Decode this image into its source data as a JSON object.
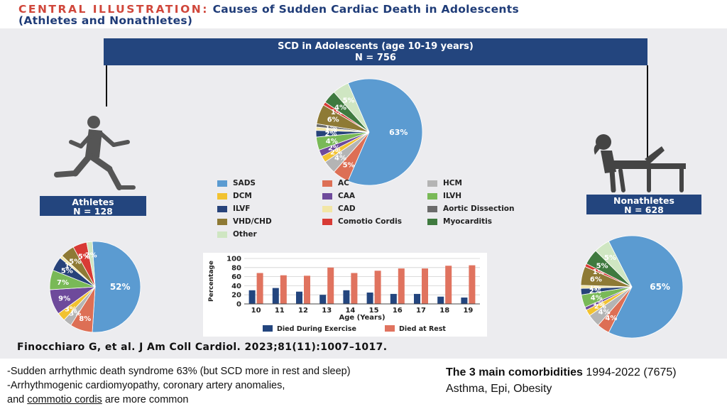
{
  "title": {
    "lead": "CENTRAL ILLUSTRATION:",
    "main": "Causes of Sudden Cardiac Death in Adolescents",
    "line2": "(Athletes and Nonathletes)"
  },
  "header": {
    "line1": "SCD in Adolescents (age 10-19 years)",
    "line2": "N = 756"
  },
  "athletes_box": {
    "line1": "Athletes",
    "line2": "N = 128"
  },
  "nonathletes_box": {
    "line1": "Nonathletes",
    "line2": "N = 628"
  },
  "legend": [
    {
      "name": "SADS",
      "color": "#5b9bd1"
    },
    {
      "name": "AC",
      "color": "#dd6f55"
    },
    {
      "name": "HCM",
      "color": "#b4b4b4"
    },
    {
      "name": "DCM",
      "color": "#f2c230"
    },
    {
      "name": "CAA",
      "color": "#6e4a9b"
    },
    {
      "name": "ILVH",
      "color": "#79b957"
    },
    {
      "name": "ILVF",
      "color": "#27437a"
    },
    {
      "name": "CAD",
      "color": "#f2e6a6"
    },
    {
      "name": "Aortic Dissection",
      "color": "#6b6b6b"
    },
    {
      "name": "VHD/CHD",
      "color": "#8e7a35"
    },
    {
      "name": "Comotio Cordis",
      "color": "#d83a35"
    },
    {
      "name": "Myocarditis",
      "color": "#3f7a3f"
    },
    {
      "name": "Other",
      "color": "#cfe6c2"
    }
  ],
  "chart_data": [
    {
      "type": "pie",
      "title": "SCD in Adolescents (age 10-19 years) N = 756",
      "slices": [
        {
          "name": "SADS",
          "value": 63,
          "label": "63%"
        },
        {
          "name": "AC",
          "value": 5,
          "label": "5%"
        },
        {
          "name": "HCM",
          "value": 4,
          "label": "4%"
        },
        {
          "name": "DCM",
          "value": 2,
          "label": "2%"
        },
        {
          "name": "CAA",
          "value": 2,
          "label": "2%"
        },
        {
          "name": "ILVH",
          "value": 4,
          "label": "4%"
        },
        {
          "name": "ILVF",
          "value": 2,
          "label": "2%"
        },
        {
          "name": "CAD",
          "value": 1,
          "label": "1%"
        },
        {
          "name": "Aortic Dissection",
          "value": 1,
          "label": "1%"
        },
        {
          "name": "VHD/CHD",
          "value": 6,
          "label": "6%"
        },
        {
          "name": "Comotio Cordis",
          "value": 1,
          "label": "1%"
        },
        {
          "name": "Myocarditis",
          "value": 4,
          "label": "4%"
        },
        {
          "name": "Other",
          "value": 5,
          "label": "5%"
        }
      ]
    },
    {
      "type": "pie",
      "title": "Athletes N = 128",
      "slices": [
        {
          "name": "SADS",
          "value": 52,
          "label": "52%"
        },
        {
          "name": "AC",
          "value": 8,
          "label": "8%"
        },
        {
          "name": "HCM",
          "value": 3,
          "label": "3%"
        },
        {
          "name": "DCM",
          "value": 3,
          "label": "3%"
        },
        {
          "name": "CAA",
          "value": 9,
          "label": "9%"
        },
        {
          "name": "ILVH",
          "value": 7,
          "label": "7%"
        },
        {
          "name": "ILVF",
          "value": 5,
          "label": "5%"
        },
        {
          "name": "CAD",
          "value": 1,
          "label": "1%"
        },
        {
          "name": "VHD/CHD",
          "value": 5,
          "label": "5%"
        },
        {
          "name": "Comotio Cordis",
          "value": 5,
          "label": "5%"
        },
        {
          "name": "Other",
          "value": 2,
          "label": "2%"
        }
      ]
    },
    {
      "type": "pie",
      "title": "Nonathletes N = 628",
      "slices": [
        {
          "name": "SADS",
          "value": 65,
          "label": "65%"
        },
        {
          "name": "AC",
          "value": 4,
          "label": "4%"
        },
        {
          "name": "HCM",
          "value": 4,
          "label": "4%"
        },
        {
          "name": "DCM",
          "value": 2,
          "label": "2%"
        },
        {
          "name": "CAA",
          "value": 1,
          "label": "1%"
        },
        {
          "name": "ILVH",
          "value": 4,
          "label": "4%"
        },
        {
          "name": "ILVF",
          "value": 2,
          "label": "2%"
        },
        {
          "name": "CAD",
          "value": 1,
          "label": "1%"
        },
        {
          "name": "VHD/CHD",
          "value": 6,
          "label": "6%"
        },
        {
          "name": "Comotio Cordis",
          "value": 1,
          "label": "1%"
        },
        {
          "name": "Myocarditis",
          "value": 5,
          "label": "5%"
        },
        {
          "name": "Other",
          "value": 5,
          "label": "5%"
        }
      ]
    },
    {
      "type": "bar",
      "xlabel": "Age (Years)",
      "ylabel": "Percentage",
      "categories": [
        "10",
        "11",
        "12",
        "13",
        "14",
        "15",
        "16",
        "17",
        "18",
        "19"
      ],
      "ylim": [
        0,
        100
      ],
      "yticks": [
        "0",
        "20",
        "40",
        "60",
        "80",
        "100"
      ],
      "grid": true,
      "legend_position": "bottom",
      "series": [
        {
          "name": "Died During Exercise",
          "color": "#23457e",
          "values": [
            30,
            35,
            27,
            20,
            30,
            25,
            22,
            22,
            16,
            14
          ]
        },
        {
          "name": "Died at Rest",
          "color": "#e0735f",
          "values": [
            68,
            63,
            62,
            80,
            68,
            73,
            78,
            78,
            84,
            85
          ]
        }
      ]
    }
  ],
  "citation": "Finocchiaro G, et al. J Am Coll Cardiol. 2023;81(11):1007–1017.",
  "notes": {
    "line1": "-Sudden arrhythmic death syndrome 63% (but SCD more in rest and sleep)",
    "line2": "-Arrhythmogenic cardiomyopathy, coronary artery anomalies,",
    "line3_pre": "and ",
    "line3_link": "commotio cordis",
    "line3_post": " are more common"
  },
  "comorbidities": {
    "title": "The 3 main comorbidities",
    "period": " 1994-2022 (7675)",
    "list": "Asthma, Epi, Obesity"
  }
}
